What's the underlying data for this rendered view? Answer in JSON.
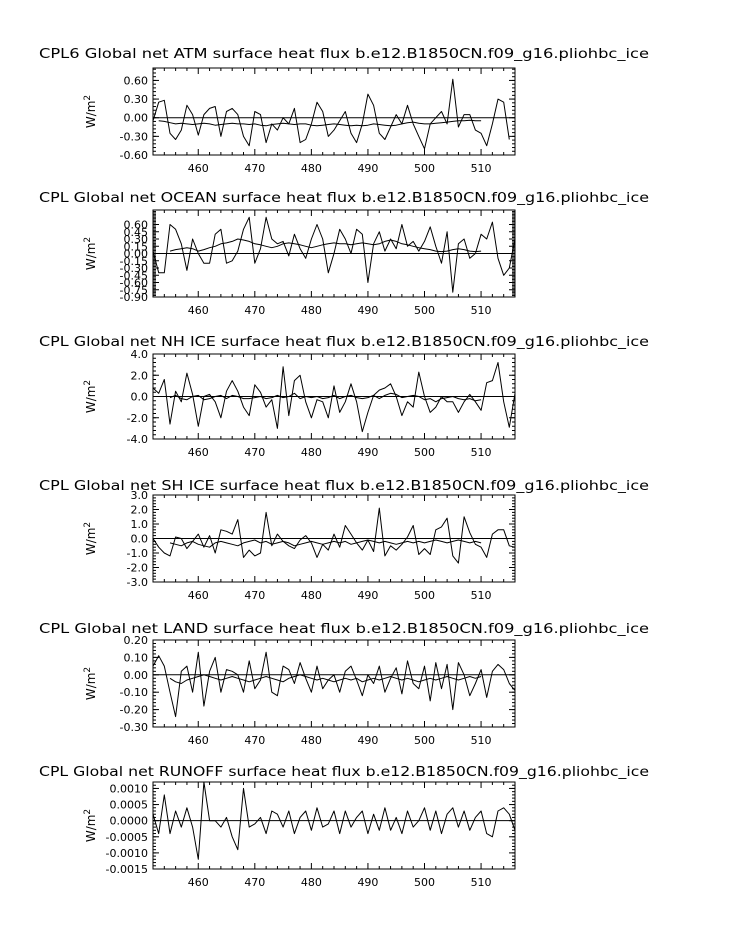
{
  "page": {
    "background": "#ffffff",
    "line_color": "#000000"
  },
  "chart_data": [
    {
      "type": "line",
      "title": "CPL6 Global net ATM surface heat flux b.e12.B1850CN.f09_g16.pliohbc_ice",
      "ylabel": "W/m",
      "ylabel_sup": "2",
      "xlim": [
        452,
        516
      ],
      "ylim": [
        -0.6,
        0.8
      ],
      "x_ticks": [
        460,
        470,
        480,
        490,
        500,
        510
      ],
      "y_ticks": [
        0.6,
        0.3,
        0.0,
        -0.3,
        -0.6
      ],
      "y_tick_labels": [
        "0.60",
        "0.30",
        "0.00",
        "-0.30",
        "-0.60"
      ],
      "zero_line": true,
      "series": [
        {
          "x_start": 452,
          "values": [
            -0.05,
            0.25,
            0.28,
            -0.25,
            -0.35,
            -0.2,
            0.2,
            0.05,
            -0.28,
            0.05,
            0.15,
            0.18,
            -0.3,
            0.1,
            0.15,
            0.05,
            -0.3,
            -0.45,
            0.1,
            0.05,
            -0.4,
            -0.1,
            -0.2,
            0.0,
            -0.1,
            0.15,
            -0.4,
            -0.35,
            -0.1,
            0.25,
            0.1,
            -0.3,
            -0.2,
            -0.05,
            0.1,
            -0.25,
            -0.4,
            -0.1,
            0.38,
            0.2,
            -0.25,
            -0.35,
            -0.15,
            0.05,
            -0.1,
            0.2,
            -0.1,
            -0.3,
            -0.5,
            -0.1,
            0.0,
            0.1,
            -0.1,
            0.62,
            -0.15,
            0.05,
            0.05,
            -0.2,
            -0.25,
            -0.45,
            -0.1,
            0.3,
            0.25,
            -0.35
          ]
        },
        {
          "x_start": 453,
          "values": [
            -0.05,
            -0.06,
            -0.08,
            -0.1,
            -0.09,
            -0.1,
            -0.11,
            -0.1,
            -0.09,
            -0.1,
            -0.12,
            -0.11,
            -0.1,
            -0.09,
            -0.1,
            -0.1,
            -0.11,
            -0.1,
            -0.12,
            -0.13,
            -0.11,
            -0.1,
            -0.09,
            -0.1,
            -0.11,
            -0.1,
            -0.1,
            -0.12,
            -0.13,
            -0.12,
            -0.11,
            -0.1,
            -0.11,
            -0.12,
            -0.13,
            -0.12,
            -0.13,
            -0.12,
            -0.1,
            -0.11,
            -0.12,
            -0.13,
            -0.12,
            -0.1,
            -0.08,
            -0.07,
            -0.09,
            -0.1,
            -0.1,
            -0.09,
            -0.08,
            -0.07,
            -0.06,
            -0.05,
            -0.05,
            -0.04,
            -0.05,
            -0.05
          ]
        }
      ]
    },
    {
      "type": "line",
      "title": "CPL Global net OCEAN surface heat flux b.e12.B1850CN.f09_g16.pliohbc_ice",
      "ylabel": "W/m",
      "ylabel_sup": "2",
      "xlim": [
        452,
        516
      ],
      "ylim": [
        -0.9,
        0.9
      ],
      "x_ticks": [
        460,
        470,
        480,
        490,
        500,
        510
      ],
      "y_ticks": [
        0.6,
        0.45,
        0.3,
        0.15,
        0.0,
        -0.15,
        -0.3,
        -0.45,
        -0.6,
        -0.75,
        -0.9
      ],
      "y_tick_labels": [
        "0.60",
        "0.45",
        "0.30",
        "0.15",
        "0.00",
        "-0.15",
        "-0.30",
        "-0.45",
        "-0.60",
        "-0.75",
        "-0.90"
      ],
      "zero_line": true,
      "series": [
        {
          "x_start": 452,
          "values": [
            0.05,
            -0.4,
            -0.4,
            0.6,
            0.5,
            0.2,
            -0.35,
            0.3,
            0.0,
            -0.2,
            -0.2,
            0.4,
            0.5,
            -0.2,
            -0.15,
            0.05,
            0.5,
            0.75,
            -0.2,
            0.1,
            0.75,
            0.3,
            0.2,
            0.25,
            -0.05,
            0.4,
            0.1,
            -0.1,
            0.3,
            0.6,
            0.3,
            -0.4,
            0.0,
            0.5,
            0.3,
            0.0,
            0.5,
            0.4,
            -0.6,
            0.2,
            0.45,
            0.05,
            0.3,
            0.1,
            0.6,
            0.15,
            0.25,
            0.05,
            0.25,
            0.55,
            0.15,
            -0.2,
            0.45,
            -0.8,
            0.2,
            0.3,
            -0.1,
            0.0,
            0.4,
            0.3,
            0.65,
            -0.1,
            -0.45,
            -0.3,
            0.3
          ]
        },
        {
          "x_start": 455,
          "values": [
            0.05,
            0.08,
            0.1,
            0.12,
            0.1,
            0.05,
            0.08,
            0.12,
            0.15,
            0.2,
            0.22,
            0.25,
            0.3,
            0.28,
            0.25,
            0.2,
            0.18,
            0.15,
            0.12,
            0.15,
            0.2,
            0.22,
            0.2,
            0.18,
            0.15,
            0.12,
            0.15,
            0.18,
            0.2,
            0.22,
            0.2,
            0.2,
            0.18,
            0.2,
            0.22,
            0.2,
            0.18,
            0.2,
            0.25,
            0.28,
            0.25,
            0.2,
            0.18,
            0.15,
            0.12,
            0.1,
            0.08,
            0.05,
            0.04,
            0.05,
            0.08,
            0.1,
            0.08,
            0.05,
            0.04,
            0.05
          ]
        }
      ]
    },
    {
      "type": "line",
      "title": "CPL Global net NH ICE surface heat flux b.e12.B1850CN.f09_g16.pliohbc_ice",
      "ylabel": "W/m",
      "ylabel_sup": "2",
      "xlim": [
        452,
        516
      ],
      "ylim": [
        -4.0,
        4.0
      ],
      "x_ticks": [
        460,
        470,
        480,
        490,
        500,
        510
      ],
      "y_ticks": [
        4.0,
        2.0,
        0.0,
        -2.0,
        -4.0
      ],
      "y_tick_labels": [
        "4.0",
        "2.0",
        "0.0",
        "-2.0",
        "-4.0"
      ],
      "zero_line": true,
      "series": [
        {
          "x_start": 452,
          "values": [
            0.8,
            0.3,
            1.6,
            -2.6,
            0.5,
            -0.5,
            2.2,
            0.2,
            -2.8,
            0.0,
            0.2,
            -0.5,
            -2.0,
            0.5,
            1.5,
            0.5,
            -1.0,
            -1.8,
            1.1,
            0.4,
            -1.0,
            -0.3,
            -3.0,
            2.8,
            -1.8,
            1.5,
            2.0,
            -0.5,
            -2.0,
            -0.3,
            -0.5,
            -2.0,
            1.0,
            -1.5,
            -0.5,
            1.2,
            -0.5,
            -3.3,
            -1.5,
            0.1,
            0.6,
            0.8,
            1.2,
            0.0,
            -1.8,
            -0.5,
            -1.0,
            2.3,
            0.0,
            -1.5,
            -1.0,
            0.0,
            -0.5,
            -0.5,
            -1.5,
            -0.5,
            0.2,
            -0.5,
            -1.3,
            1.3,
            1.5,
            3.2,
            -0.5,
            -2.9,
            0.3
          ]
        },
        {
          "x_start": 455,
          "values": [
            -0.1,
            0.1,
            -0.2,
            -0.3,
            0.0,
            0.1,
            -0.3,
            -0.2,
            0.0,
            0.1,
            -0.2,
            0.1,
            0.0,
            -0.2,
            -0.2,
            -0.1,
            0.0,
            -0.2,
            -0.1,
            0.1,
            -0.1,
            0.0,
            0.3,
            -0.2,
            0.0,
            -0.1,
            0.0,
            -0.2,
            -0.1,
            0.1,
            -0.2,
            0.0,
            0.1,
            -0.1,
            -0.2,
            -0.1,
            0.1,
            -0.2,
            0.1,
            0.3,
            0.2,
            -0.1,
            0.0,
            0.1,
            0.0,
            -0.3,
            -0.2,
            -0.5,
            -0.2,
            -0.1,
            0.0,
            -0.2,
            -0.3,
            -0.2,
            -0.4,
            -0.3
          ]
        }
      ]
    },
    {
      "type": "line",
      "title": "CPL Global net SH ICE surface heat flux b.e12.B1850CN.f09_g16.pliohbc_ice",
      "ylabel": "W/m",
      "ylabel_sup": "2",
      "xlim": [
        452,
        516
      ],
      "ylim": [
        -3.0,
        3.0
      ],
      "x_ticks": [
        460,
        470,
        480,
        490,
        500,
        510
      ],
      "y_ticks": [
        3.0,
        2.0,
        1.0,
        0.0,
        -1.0,
        -2.0,
        -3.0
      ],
      "y_tick_labels": [
        "3.0",
        "2.0",
        "1.0",
        "0.0",
        "-1.0",
        "-2.0",
        "-3.0"
      ],
      "zero_line": true,
      "series": [
        {
          "x_start": 452,
          "values": [
            0.0,
            -0.6,
            -1.0,
            -1.2,
            0.1,
            0.0,
            -0.7,
            -0.2,
            0.3,
            -0.6,
            0.2,
            -1.0,
            0.6,
            0.5,
            0.3,
            1.3,
            -1.3,
            -0.8,
            -1.2,
            -1.0,
            1.8,
            -0.5,
            0.3,
            -0.2,
            -0.5,
            -0.7,
            -0.1,
            0.2,
            -0.3,
            -1.3,
            -0.4,
            -0.8,
            0.3,
            -0.6,
            0.9,
            0.3,
            -0.3,
            -0.8,
            -0.1,
            -0.9,
            2.1,
            -1.2,
            -0.5,
            -0.8,
            -0.4,
            0.1,
            0.9,
            -1.1,
            -0.7,
            -1.1,
            0.6,
            0.8,
            1.4,
            -1.2,
            -1.7,
            1.5,
            0.4,
            -0.4,
            -0.6,
            -1.3,
            0.3,
            0.6,
            0.6,
            -0.5,
            -0.6
          ]
        },
        {
          "x_start": 455,
          "values": [
            -0.3,
            -0.4,
            -0.5,
            -0.3,
            -0.2,
            -0.4,
            -0.5,
            -0.6,
            -0.3,
            -0.2,
            -0.3,
            -0.4,
            -0.5,
            -0.3,
            -0.2,
            -0.1,
            -0.3,
            -0.2,
            -0.4,
            -0.3,
            -0.2,
            -0.3,
            -0.5,
            -0.4,
            -0.3,
            -0.2,
            -0.3,
            -0.4,
            -0.3,
            -0.2,
            -0.3,
            -0.2,
            -0.4,
            -0.3,
            -0.2,
            -0.1,
            -0.2,
            -0.3,
            -0.2,
            -0.3,
            -0.4,
            -0.3,
            -0.2,
            -0.3,
            -0.2,
            -0.3,
            -0.2,
            -0.1,
            -0.2,
            -0.3,
            -0.2,
            -0.1,
            -0.2,
            -0.3,
            -0.2,
            -0.3
          ]
        }
      ]
    },
    {
      "type": "line",
      "title": "CPL Global net LAND surface heat flux b.e12.B1850CN.f09_g16.pliohbc_ice",
      "ylabel": "W/m",
      "ylabel_sup": "2",
      "xlim": [
        452,
        516
      ],
      "ylim": [
        -0.3,
        0.2
      ],
      "x_ticks": [
        460,
        470,
        480,
        490,
        500,
        510
      ],
      "y_ticks": [
        0.2,
        0.1,
        0.0,
        -0.1,
        -0.2,
        -0.3
      ],
      "y_tick_labels": [
        "0.20",
        "0.10",
        "0.00",
        "-0.10",
        "-0.20",
        "-0.30"
      ],
      "zero_line": true,
      "series": [
        {
          "x_start": 452,
          "values": [
            0.05,
            0.11,
            0.05,
            -0.1,
            -0.24,
            0.02,
            0.05,
            -0.1,
            0.13,
            -0.18,
            0.02,
            0.1,
            -0.1,
            0.03,
            0.02,
            0.0,
            -0.1,
            0.08,
            -0.08,
            -0.03,
            0.13,
            -0.1,
            -0.12,
            0.05,
            0.03,
            -0.05,
            0.07,
            -0.02,
            -0.1,
            0.05,
            -0.08,
            -0.03,
            0.0,
            -0.1,
            0.02,
            0.05,
            -0.03,
            -0.12,
            0.0,
            -0.05,
            0.05,
            -0.1,
            -0.02,
            0.04,
            -0.11,
            0.08,
            -0.05,
            -0.08,
            0.05,
            -0.15,
            0.07,
            -0.08,
            0.06,
            -0.2,
            0.07,
            0.0,
            -0.12,
            -0.05,
            0.03,
            -0.13,
            0.02,
            0.06,
            0.03,
            -0.05,
            -0.09
          ]
        },
        {
          "x_start": 455,
          "values": [
            -0.02,
            -0.04,
            -0.05,
            -0.03,
            -0.02,
            -0.01,
            0.0,
            -0.01,
            -0.02,
            -0.03,
            -0.02,
            -0.01,
            -0.02,
            -0.03,
            -0.04,
            -0.03,
            -0.02,
            -0.01,
            -0.02,
            -0.03,
            -0.04,
            -0.02,
            -0.01,
            0.0,
            -0.01,
            -0.02,
            -0.03,
            -0.02,
            -0.03,
            -0.04,
            -0.03,
            -0.02,
            -0.03,
            -0.02,
            -0.04,
            -0.03,
            -0.02,
            -0.03,
            -0.02,
            -0.01,
            -0.02,
            -0.03,
            -0.02,
            -0.03,
            -0.04,
            -0.03,
            -0.02,
            -0.03,
            -0.02,
            -0.01,
            -0.02,
            -0.03,
            -0.02,
            -0.01,
            -0.02,
            -0.01
          ]
        }
      ]
    },
    {
      "type": "line",
      "title": "CPL Global net RUNOFF surface heat flux b.e12.B1850CN.f09_g16.pliohbc_ice",
      "ylabel": "W/m",
      "ylabel_sup": "2",
      "xlim": [
        452,
        516
      ],
      "ylim": [
        -0.0015,
        0.0012
      ],
      "x_ticks": [
        460,
        470,
        480,
        490,
        500,
        510
      ],
      "y_ticks": [
        0.001,
        0.0005,
        0.0,
        -0.0005,
        -0.001,
        -0.0015
      ],
      "y_tick_labels": [
        "0.0010",
        "0.0005",
        "0.0000",
        "-0.0005",
        "-0.0010",
        "-0.0015"
      ],
      "zero_line": true,
      "series": [
        {
          "x_start": 452,
          "values": [
            0.0002,
            -0.0004,
            0.0008,
            -0.0004,
            0.0003,
            -0.0002,
            0.0004,
            -0.0002,
            -0.0012,
            0.0012,
            0.0,
            0.0,
            -0.0002,
            0.0001,
            -0.0005,
            -0.0009,
            0.001,
            -0.0002,
            -0.0001,
            0.0001,
            -0.0004,
            0.0003,
            0.0002,
            -0.0002,
            0.0003,
            -0.0004,
            0.0001,
            0.0003,
            -0.0003,
            0.0004,
            -0.0002,
            -0.0001,
            0.0003,
            -0.0004,
            0.0003,
            -0.0002,
            0.0001,
            0.0003,
            -0.0004,
            0.0002,
            -0.0003,
            0.0004,
            -0.0003,
            0.0001,
            -0.0004,
            0.0003,
            -0.0002,
            0.0,
            0.0004,
            -0.0003,
            0.0003,
            -0.0004,
            0.0002,
            0.0004,
            -0.0002,
            0.0003,
            -0.0003,
            0.0001,
            0.0003,
            -0.0004,
            -0.0005,
            0.0003,
            0.0004,
            0.0002,
            -0.0003
          ]
        }
      ]
    }
  ]
}
